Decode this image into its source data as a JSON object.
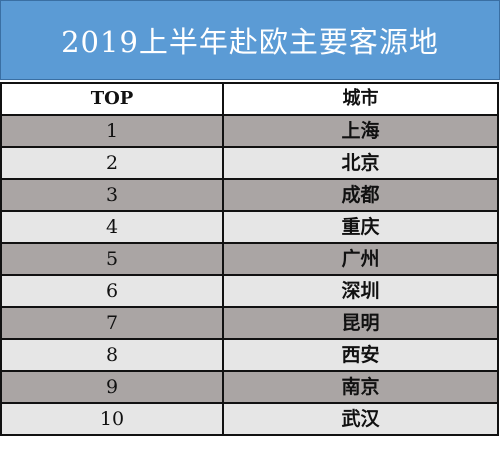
{
  "title": "2019上半年赴欧主要客源地",
  "table": {
    "headers": [
      "TOP",
      "城市"
    ],
    "rows": [
      {
        "rank": "1",
        "city": "上海"
      },
      {
        "rank": "2",
        "city": "北京"
      },
      {
        "rank": "3",
        "city": "成都"
      },
      {
        "rank": "4",
        "city": "重庆"
      },
      {
        "rank": "5",
        "city": "广州"
      },
      {
        "rank": "6",
        "city": "深圳"
      },
      {
        "rank": "7",
        "city": "昆明"
      },
      {
        "rank": "8",
        "city": "西安"
      },
      {
        "rank": "9",
        "city": "南京"
      },
      {
        "rank": "10",
        "city": "武汉"
      }
    ]
  },
  "colors": {
    "title_background": "#5b9bd5",
    "row_dark": "#aaa5a4",
    "row_light": "#e6e6e6"
  }
}
